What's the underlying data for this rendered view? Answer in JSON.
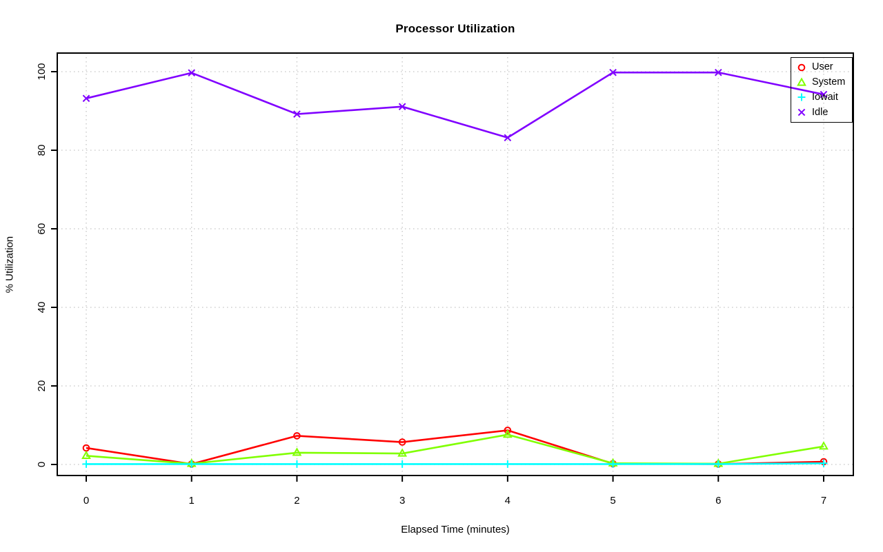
{
  "chart_data": {
    "type": "line",
    "title": "Processor Utilization",
    "xlabel": "Elapsed Time (minutes)",
    "ylabel": "% Utilization",
    "xlim": [
      0,
      7
    ],
    "ylim": [
      0,
      100
    ],
    "x_ticks": [
      "0",
      "1",
      "2",
      "3",
      "4",
      "5",
      "6",
      "7"
    ],
    "y_ticks": [
      "0",
      "20",
      "40",
      "60",
      "80",
      "100"
    ],
    "grid": "dotted",
    "legend_position": "top-right",
    "x": [
      0,
      1,
      2,
      3,
      4,
      5,
      6,
      7
    ],
    "series": [
      {
        "name": "User",
        "color": "#FF0000",
        "marker": "circle",
        "values": [
          4.2,
          0.1,
          7.3,
          5.7,
          8.7,
          0.2,
          0.1,
          0.7
        ]
      },
      {
        "name": "System",
        "color": "#80FF00",
        "marker": "triangle",
        "values": [
          2.2,
          0.2,
          3.0,
          2.8,
          7.6,
          0.3,
          0.2,
          4.6
        ]
      },
      {
        "name": "Iowait",
        "color": "#00FFFF",
        "marker": "plus",
        "values": [
          0.1,
          0.1,
          0.1,
          0.1,
          0.1,
          0.1,
          0.1,
          0.3
        ]
      },
      {
        "name": "Idle",
        "color": "#8000FF",
        "marker": "x",
        "values": [
          93.2,
          99.7,
          89.2,
          91.1,
          83.2,
          99.8,
          99.8,
          94.2
        ]
      }
    ]
  }
}
